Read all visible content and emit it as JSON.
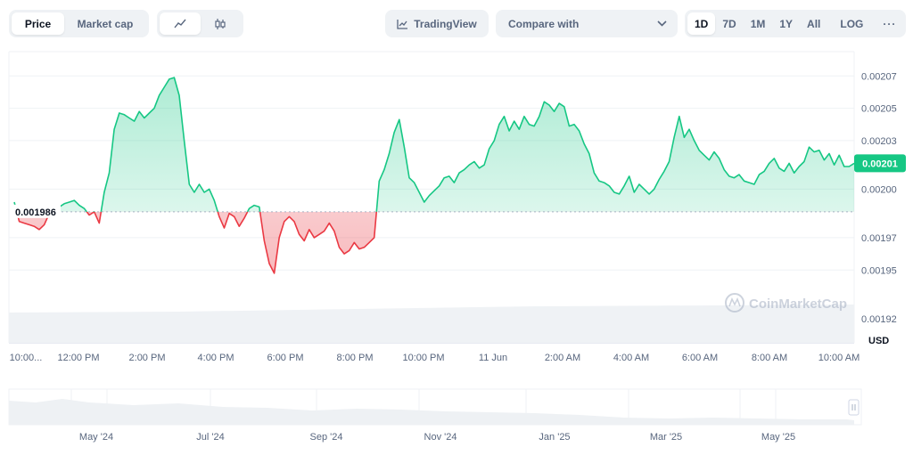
{
  "toolbar": {
    "price_label": "Price",
    "market_cap_label": "Market cap",
    "line_icon": "line-chart-icon",
    "candle_icon": "candlestick-icon",
    "tradingview_label": "TradingView",
    "compare_label": "Compare with",
    "ranges": [
      "1D",
      "7D",
      "1M",
      "1Y",
      "All"
    ],
    "active_range": "1D",
    "log_label": "LOG",
    "more_label": "···"
  },
  "colors": {
    "up": "#16c784",
    "down": "#ea3943",
    "up_fill": "#e6f8ef",
    "down_fill": "#fbe2e4",
    "grid": "#eff2f5",
    "baseline": "#a6b0c3",
    "volume": "#eff2f5",
    "overview": "#eef1f4"
  },
  "chart_data": {
    "type": "area",
    "currency": "USD",
    "baseline_value": 0.001986,
    "baseline_label": "0.001986",
    "current_value_label": "0.00201",
    "y_ticks": [
      {
        "v": 0.00207,
        "t": "0.00207"
      },
      {
        "v": 0.00205,
        "t": "0.00205"
      },
      {
        "v": 0.00203,
        "t": "0.00203"
      },
      {
        "v": 0.002,
        "t": "0.00200"
      },
      {
        "v": 0.00197,
        "t": "0.00197"
      },
      {
        "v": 0.00195,
        "t": "0.00195"
      },
      {
        "v": 0.00192,
        "t": "0.00192"
      }
    ],
    "y_unit": "USD",
    "ylim": [
      0.001905,
      0.002085
    ],
    "x_tick_labels": [
      "10:00...",
      "12:00 PM",
      "2:00 PM",
      "4:00 PM",
      "6:00 PM",
      "8:00 PM",
      "10:00 PM",
      "11 Jun",
      "2:00 AM",
      "4:00 AM",
      "6:00 AM",
      "8:00 AM",
      "10:00 AM"
    ],
    "series": [
      {
        "values": [
          0.001992,
          0.00198,
          0.001979,
          0.001978,
          0.001977,
          0.001975,
          0.001978,
          0.001985,
          0.001987,
          0.001989,
          0.001991,
          0.001992,
          0.001993,
          0.00199,
          0.001988,
          0.001984,
          0.001986,
          0.001979,
          0.001998,
          0.00201,
          0.002037,
          0.002047,
          0.002046,
          0.002044,
          0.002042,
          0.002048,
          0.002044,
          0.002047,
          0.00205,
          0.002058,
          0.002063,
          0.002068,
          0.002069,
          0.002058,
          0.00203,
          0.002003,
          0.001998,
          0.002003,
          0.001998,
          0.002,
          0.001993,
          0.001983,
          0.001976,
          0.001985,
          0.001983,
          0.001977,
          0.001982,
          0.001988,
          0.00199,
          0.001989,
          0.001968,
          0.001954,
          0.001948,
          0.00197,
          0.00198,
          0.001983,
          0.00198,
          0.001972,
          0.001968,
          0.001975,
          0.00197,
          0.001972,
          0.001974,
          0.001979,
          0.001974,
          0.001964,
          0.00196,
          0.001962,
          0.001967,
          0.001963,
          0.001964,
          0.001967,
          0.00197,
          0.002005,
          0.002012,
          0.002022,
          0.002035,
          0.002043,
          0.002026,
          0.002007,
          0.002004,
          0.001998,
          0.001992,
          0.001996,
          0.001999,
          0.002002,
          0.002007,
          0.002008,
          0.002004,
          0.00201,
          0.002012,
          0.002015,
          0.002017,
          0.002013,
          0.002015,
          0.002025,
          0.00203,
          0.00204,
          0.002045,
          0.002036,
          0.002042,
          0.002037,
          0.002045,
          0.00204,
          0.002039,
          0.002045,
          0.002054,
          0.002052,
          0.002048,
          0.002053,
          0.002051,
          0.002039,
          0.00204,
          0.002036,
          0.002028,
          0.002022,
          0.00201,
          0.002005,
          0.002004,
          0.002002,
          0.001998,
          0.001997,
          0.002002,
          0.002008,
          0.001998,
          0.002003,
          0.002,
          0.001997,
          0.002,
          0.002006,
          0.002011,
          0.002017,
          0.002032,
          0.002045,
          0.002032,
          0.002037,
          0.00203,
          0.002024,
          0.002021,
          0.002018,
          0.002023,
          0.002019,
          0.002012,
          0.002008,
          0.002007,
          0.002009,
          0.002005,
          0.002004,
          0.002003,
          0.002009,
          0.002011,
          0.002016,
          0.002019,
          0.002013,
          0.002011,
          0.002016,
          0.00201,
          0.002014,
          0.002017,
          0.002026,
          0.002023,
          0.002024,
          0.002018,
          0.002022,
          0.002015,
          0.002021,
          0.002014,
          0.002014,
          0.002016
        ]
      }
    ],
    "overview_x_labels": [
      "May '24",
      "Jul '24",
      "Sep '24",
      "Nov '24",
      "Jan '25",
      "Mar '25",
      "May '25"
    ],
    "watermark": "CoinMarketCap"
  }
}
